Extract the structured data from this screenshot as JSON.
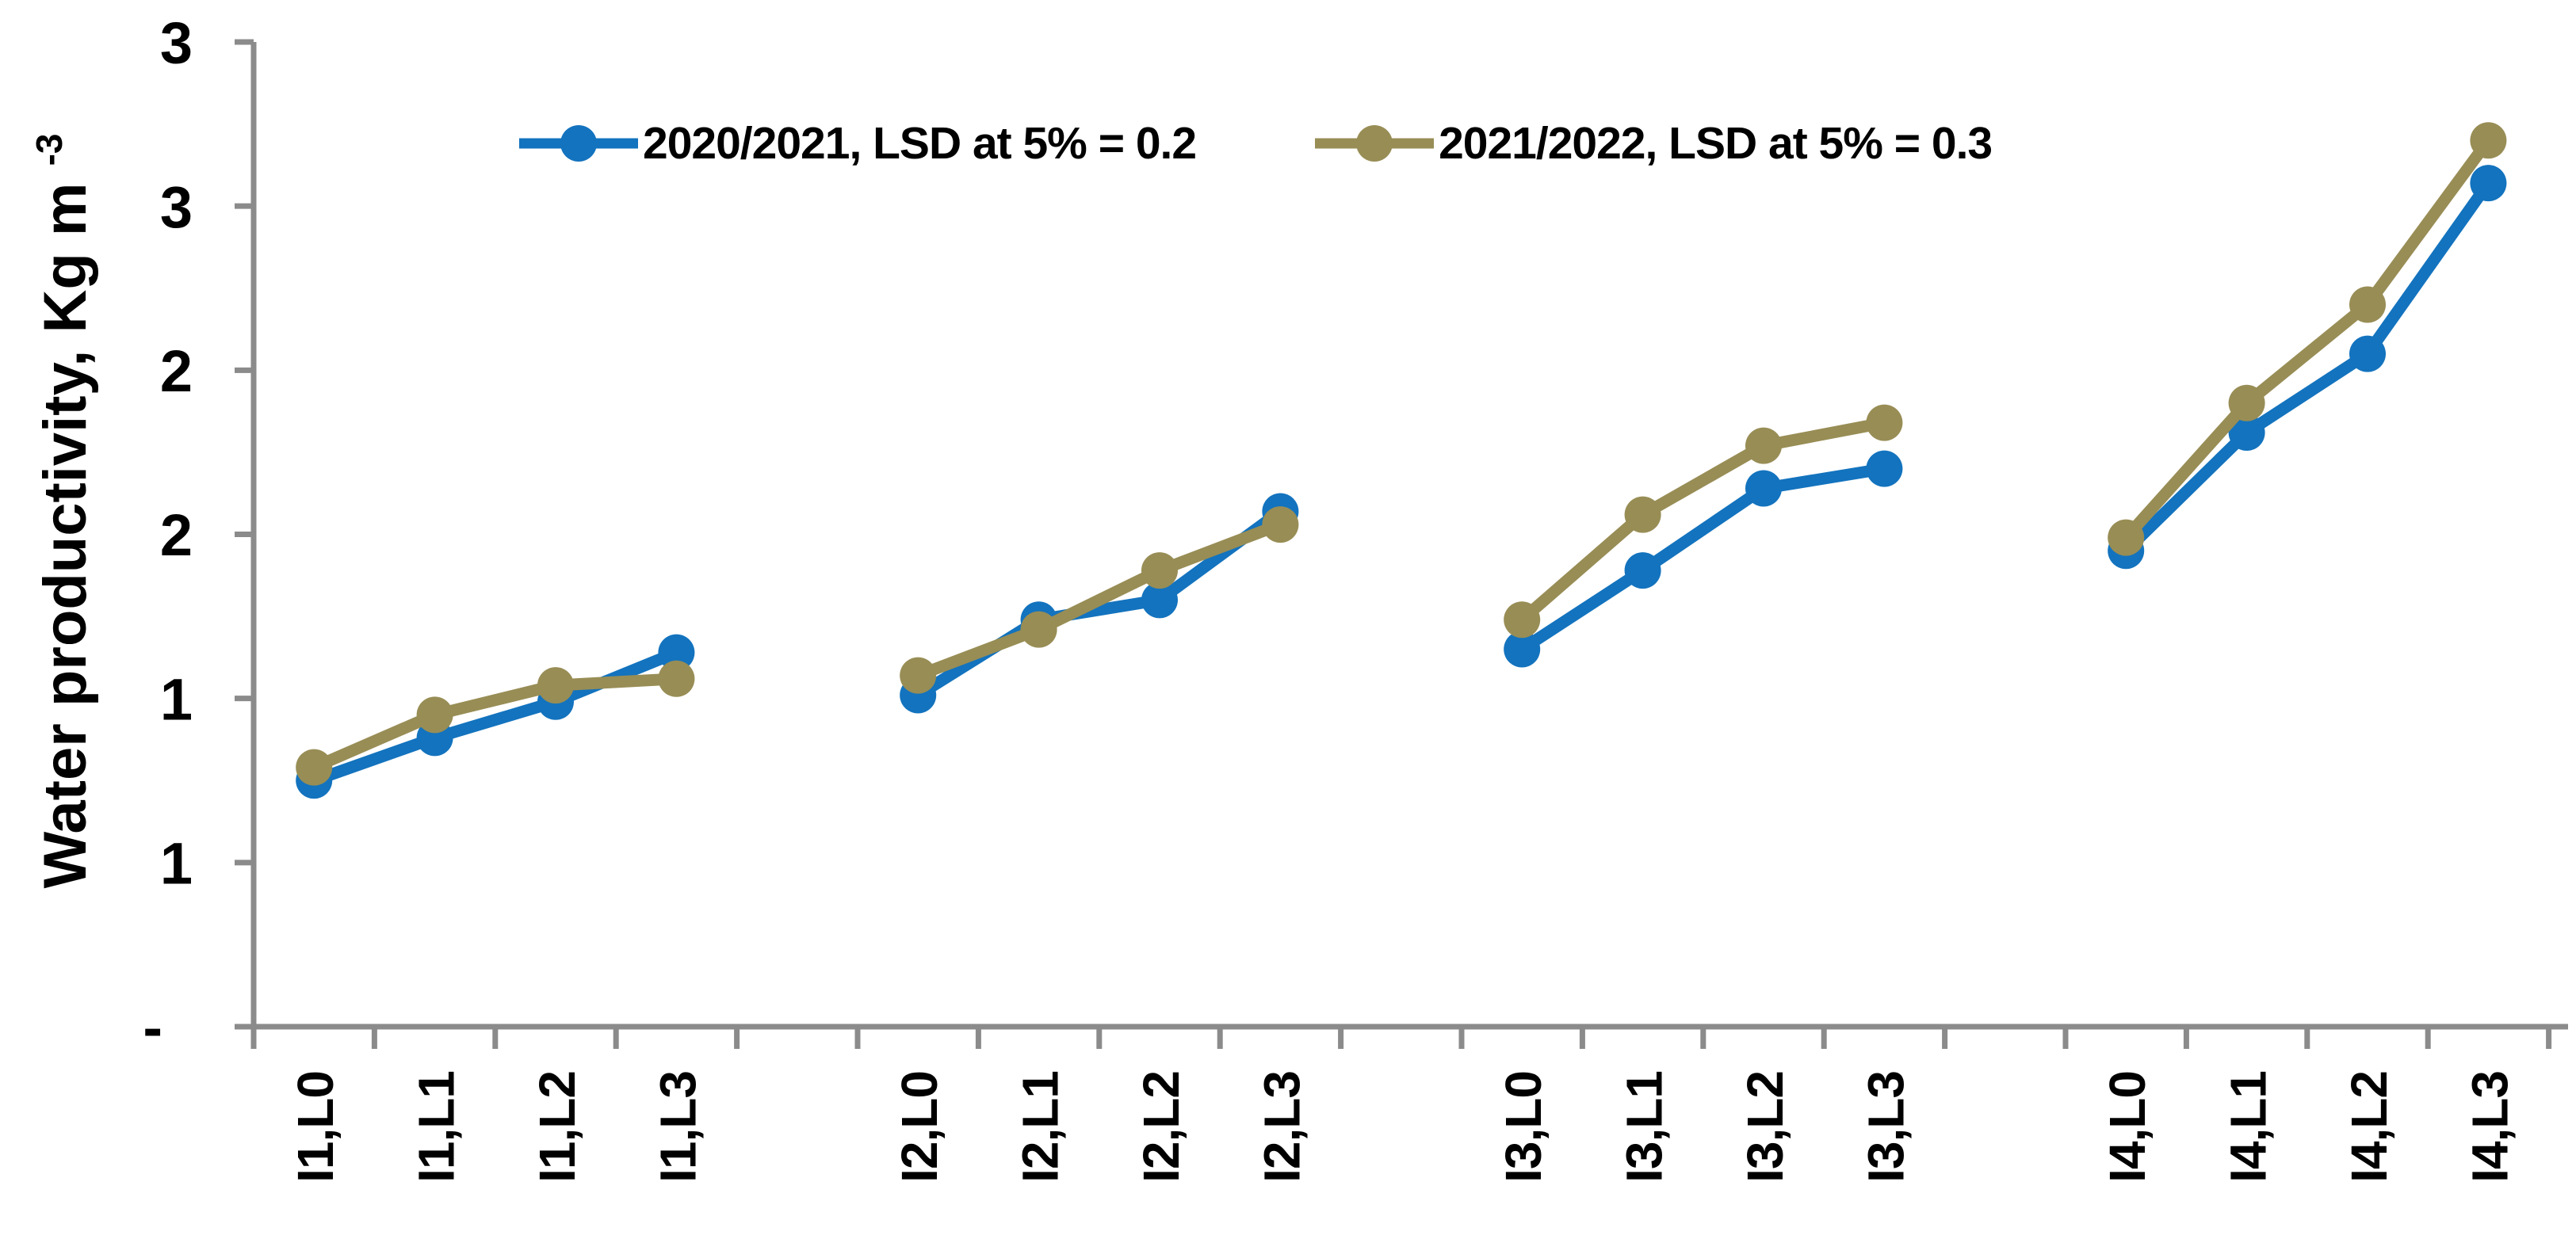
{
  "chart_data": {
    "type": "line",
    "title": "",
    "ylabel_main": "Water productivity, Kg m",
    "ylabel_sup": "-3",
    "categories": [
      "I1,L0",
      "I1,L1",
      "I1,L2",
      "I1,L3",
      "I2,L0",
      "I2,L1",
      "I2,L2",
      "I2,L3",
      "I3,L0",
      "I3,L1",
      "I3,L2",
      "I3,L3",
      "I4,L0",
      "I4,L1",
      "I4,L2",
      "I4,L3"
    ],
    "group_size": 4,
    "gap_between_groups": 1,
    "series": [
      {
        "name": "2020/2021, LSD at 5% = 0.2",
        "color": "#1373BE",
        "values": [
          0.75,
          0.88,
          0.99,
          1.14,
          1.01,
          1.24,
          1.3,
          1.57,
          1.15,
          1.39,
          1.64,
          1.7,
          1.45,
          1.81,
          2.05,
          2.57
        ]
      },
      {
        "name": "2021/2022, LSD at 5% = 0.3",
        "color": "#988D55",
        "values": [
          0.79,
          0.95,
          1.04,
          1.06,
          1.07,
          1.21,
          1.39,
          1.53,
          1.24,
          1.56,
          1.77,
          1.84,
          1.49,
          1.9,
          2.2,
          2.7
        ]
      }
    ],
    "y_axis": {
      "min": 0,
      "max": 3,
      "step": 0.5,
      "tick_labels": [
        "-",
        "1",
        "1",
        "2",
        "2",
        "3",
        "3"
      ]
    },
    "axis_color": "#8B8B8B",
    "text_color": "#000000",
    "legend_position": "top",
    "grid": false,
    "line_breaks_between_groups": true
  }
}
